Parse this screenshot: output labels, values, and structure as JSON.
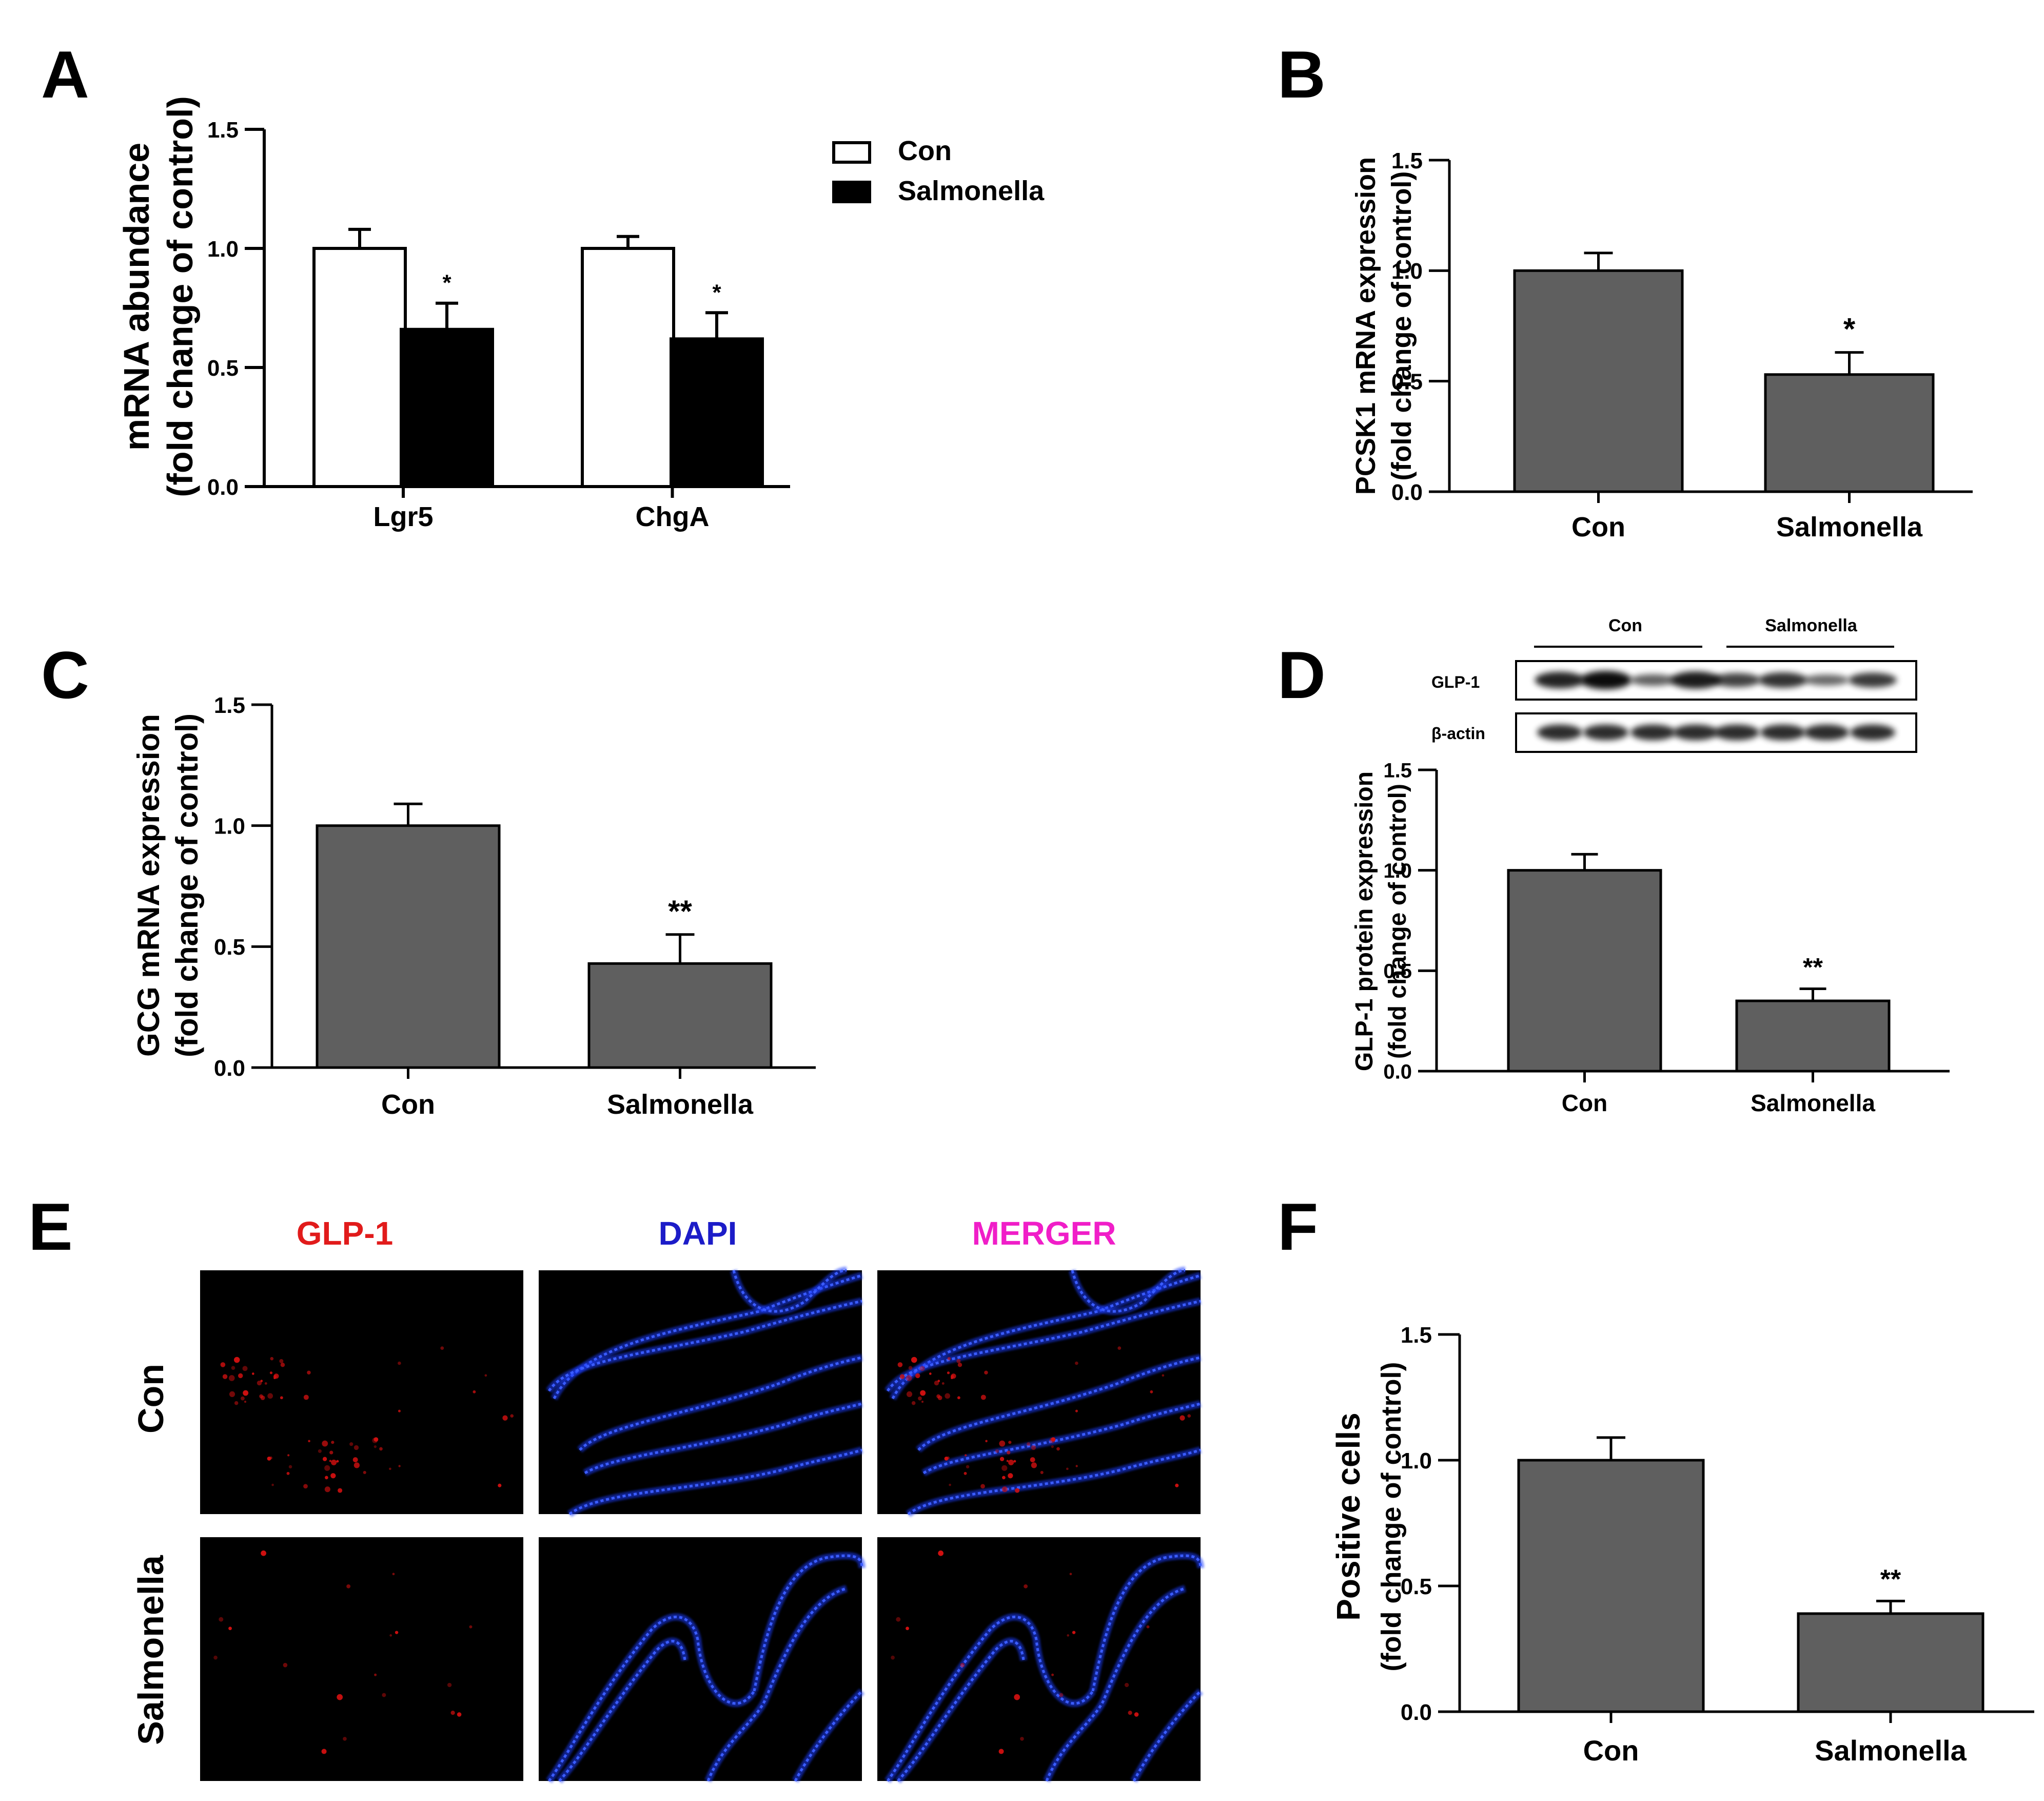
{
  "colors": {
    "bar_gray": "#5f5f5f",
    "bar_black": "#000000",
    "bar_white": "#ffffff",
    "glp1_label": "#e11b1b",
    "dapi_label": "#1c1cc8",
    "merger_label": "#f01ec8",
    "dapi_stain": "#1f3dff",
    "glp1_stain": "#d01010"
  },
  "panels": {
    "A": {
      "letter": "A",
      "ylabel": [
        "mRNA abundance",
        "(fold change of control)"
      ]
    },
    "B": {
      "letter": "B",
      "ylabel": [
        "PCSK1 mRNA expression",
        "(fold change of control)"
      ]
    },
    "C": {
      "letter": "C",
      "ylabel": [
        "GCG mRNA expression",
        "(fold change of control)"
      ]
    },
    "D": {
      "letter": "D",
      "ylabel": [
        "GLP-1 protein expression",
        "(fold change of control)"
      ]
    },
    "E": {
      "letter": "E"
    },
    "F": {
      "letter": "F",
      "ylabel": [
        "Positive cells",
        "(fold change of control)"
      ]
    }
  },
  "western_blot": {
    "group_labels": [
      "Con",
      "Salmonella"
    ],
    "row_labels": [
      "GLP-1",
      "β-actin"
    ],
    "glp1_band_intensity": [
      0.85,
      1.0,
      0.45,
      0.9,
      0.65,
      0.75,
      0.4,
      0.7
    ],
    "actin_band_intensity": [
      0.85,
      0.85,
      0.85,
      0.85,
      0.85,
      0.85,
      0.85,
      0.85
    ]
  },
  "microscopy": {
    "column_labels": [
      "GLP-1",
      "DAPI",
      "MERGER"
    ],
    "row_labels": [
      "Con",
      "Salmonella"
    ]
  },
  "chart_data": [
    {
      "panel": "A",
      "type": "bar",
      "categories": [
        "Lgr5",
        "ChgA"
      ],
      "series": [
        {
          "name": "Con",
          "values": [
            1.0,
            1.0
          ],
          "errors": [
            0.08,
            0.05
          ],
          "sig": [
            "",
            ""
          ],
          "color": "#ffffff"
        },
        {
          "name": "Salmonella",
          "values": [
            0.66,
            0.62
          ],
          "errors": [
            0.11,
            0.11
          ],
          "sig": [
            "*",
            "*"
          ],
          "color": "#000000"
        }
      ],
      "xlabel": "",
      "ylabel": "mRNA abundance (fold change of control)",
      "ylim": [
        0,
        1.5
      ],
      "yticks": [
        "0.0",
        "0.5",
        "1.0",
        "1.5"
      ],
      "legend": "right"
    },
    {
      "panel": "B",
      "type": "bar",
      "categories": [
        "Con",
        "Salmonella"
      ],
      "values": [
        1.0,
        0.53
      ],
      "errors": [
        0.08,
        0.1
      ],
      "sig": [
        "",
        "*"
      ],
      "ylabel": "PCSK1 mRNA expression (fold change of control)",
      "ylim": [
        0,
        1.5
      ],
      "yticks": [
        "0.0",
        "0.5",
        "1.0",
        "1.5"
      ]
    },
    {
      "panel": "C",
      "type": "bar",
      "categories": [
        "Con",
        "Salmonella"
      ],
      "values": [
        1.0,
        0.43
      ],
      "errors": [
        0.09,
        0.12
      ],
      "sig": [
        "",
        "**"
      ],
      "ylabel": "GCG mRNA expression (fold change of control)",
      "ylim": [
        0,
        1.5
      ],
      "yticks": [
        "0.0",
        "0.5",
        "1.0",
        "1.5"
      ]
    },
    {
      "panel": "D",
      "type": "bar",
      "categories": [
        "Con",
        "Salmonella"
      ],
      "values": [
        1.0,
        0.35
      ],
      "errors": [
        0.08,
        0.06
      ],
      "sig": [
        "",
        "**"
      ],
      "ylabel": "GLP-1 protein expression (fold change of control)",
      "ylim": [
        0,
        1.5
      ],
      "yticks": [
        "0.0",
        "0.5",
        "1.0",
        "1.5"
      ]
    },
    {
      "panel": "F",
      "type": "bar",
      "categories": [
        "Con",
        "Salmonella"
      ],
      "values": [
        1.0,
        0.39
      ],
      "errors": [
        0.09,
        0.05
      ],
      "sig": [
        "",
        "**"
      ],
      "ylabel": "Positive cells (fold change of control)",
      "ylim": [
        0,
        1.5
      ],
      "yticks": [
        "0.0",
        "0.5",
        "1.0",
        "1.5"
      ]
    }
  ]
}
